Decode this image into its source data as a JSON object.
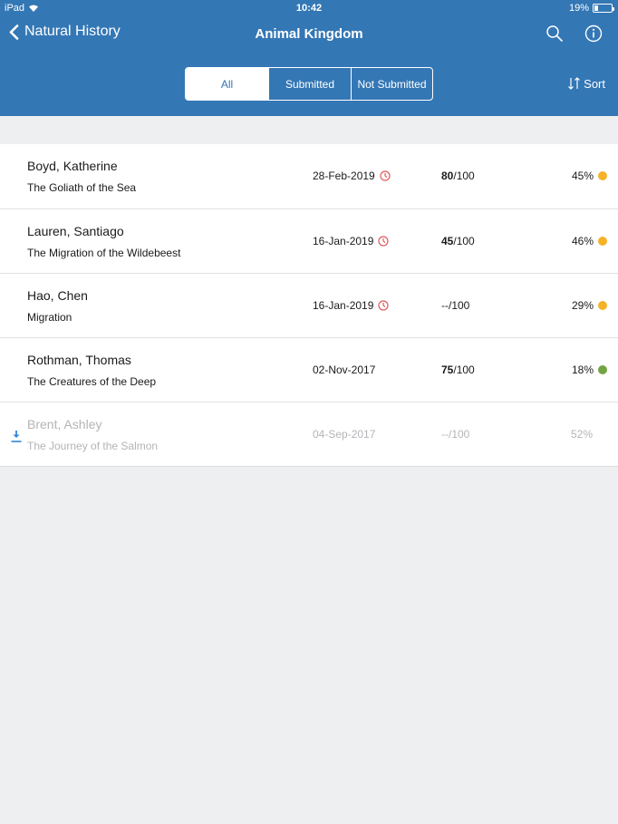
{
  "status_bar": {
    "device": "iPad",
    "time": "10:42",
    "battery": "19%"
  },
  "nav": {
    "back_label": "Natural History",
    "title": "Animal Kingdom"
  },
  "segments": [
    {
      "label": "All",
      "selected": true
    },
    {
      "label": "Submitted",
      "selected": false
    },
    {
      "label": "Not Submitted",
      "selected": false
    }
  ],
  "sort_label": "Sort",
  "colors": {
    "header": "#3477b5",
    "amber": "#f5b227",
    "green": "#72a443",
    "overdue": "#e05a5a"
  },
  "rows": [
    {
      "name": "Boyd, Katherine",
      "subtitle": "The Goliath of the Sea",
      "date": "28-Feb-2019",
      "overdue": true,
      "score": "80",
      "score_max": "/100",
      "percent": "45%",
      "status_color": "#f5b227"
    },
    {
      "name": "Lauren, Santiago",
      "subtitle": "The Migration of the Wildebeest",
      "date": "16-Jan-2019",
      "overdue": true,
      "score": "45",
      "score_max": "/100",
      "percent": "46%",
      "status_color": "#f5b227"
    },
    {
      "name": "Hao, Chen",
      "subtitle": "Migration",
      "date": "16-Jan-2019",
      "overdue": true,
      "score": "--",
      "score_max": "/100",
      "percent": "29%",
      "status_color": "#f5b227"
    },
    {
      "name": "Rothman, Thomas",
      "subtitle": "The Creatures of the Deep",
      "date": "02-Nov-2017",
      "overdue": false,
      "score": "75",
      "score_max": "/100",
      "percent": "18%",
      "status_color": "#72a443"
    },
    {
      "name": "Brent, Ashley",
      "subtitle": "The Journey of the Salmon",
      "date": "04-Sep-2017",
      "overdue": false,
      "score": "--",
      "score_max": "/100",
      "percent": "52%",
      "status_color": "",
      "downloadable": true
    }
  ]
}
